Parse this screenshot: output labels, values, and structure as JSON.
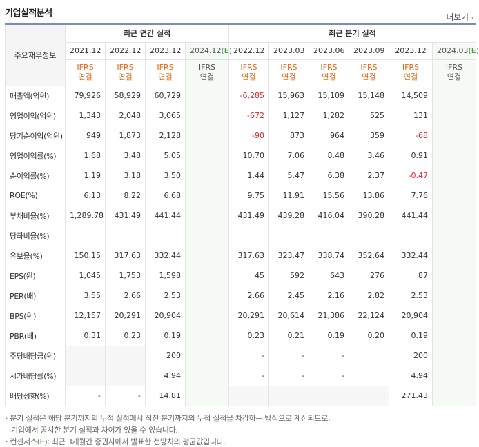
{
  "header": {
    "title": "기업실적분석",
    "more_label": "더보기",
    "more_arrow": "›"
  },
  "table": {
    "corner_label": "주요재무정보",
    "annual_group": "최근 연간 실적",
    "quarter_group": "최근 분기 실적",
    "annual_periods": [
      "2021.12",
      "2022.12",
      "2023.12",
      "2024.12"
    ],
    "quarter_periods": [
      "2022.12",
      "2023.03",
      "2023.06",
      "2023.09",
      "2023.12",
      "2024.03"
    ],
    "estimate_mark": "(E)",
    "ifrs_top": "IFRS",
    "ifrs_bottom": "연결",
    "rows": [
      {
        "label": "매출액(억원)",
        "annual": [
          "79,926",
          "58,929",
          "60,729",
          ""
        ],
        "quarter": [
          "-6,285",
          "15,963",
          "15,109",
          "15,148",
          "14,509",
          ""
        ]
      },
      {
        "label": "영업이익(억원)",
        "annual": [
          "1,343",
          "2,048",
          "3,065",
          ""
        ],
        "quarter": [
          "-672",
          "1,127",
          "1,282",
          "525",
          "131",
          ""
        ]
      },
      {
        "label": "당기순이익(억원)",
        "annual": [
          "949",
          "1,873",
          "2,128",
          ""
        ],
        "quarter": [
          "-90",
          "873",
          "964",
          "359",
          "-68",
          ""
        ]
      },
      {
        "label": "영업이익률(%)",
        "annual": [
          "1.68",
          "3.48",
          "5.05",
          ""
        ],
        "quarter": [
          "10.70",
          "7.06",
          "8.48",
          "3.46",
          "0.91",
          ""
        ]
      },
      {
        "label": "순이익률(%)",
        "annual": [
          "1.19",
          "3.18",
          "3.50",
          ""
        ],
        "quarter": [
          "1.44",
          "5.47",
          "6.38",
          "2.37",
          "-0.47",
          ""
        ]
      },
      {
        "label": "ROE(%)",
        "annual": [
          "6.13",
          "8.22",
          "6.68",
          ""
        ],
        "quarter": [
          "9.75",
          "11.91",
          "15.56",
          "13.86",
          "7.76",
          ""
        ]
      },
      {
        "label": "부채비율(%)",
        "annual": [
          "1,289.78",
          "431.49",
          "441.44",
          ""
        ],
        "quarter": [
          "431.49",
          "439.28",
          "416.04",
          "390.28",
          "441.44",
          ""
        ]
      },
      {
        "label": "당좌비율(%)",
        "annual": [
          "",
          "",
          "",
          ""
        ],
        "quarter": [
          "",
          "",
          "",
          "",
          "",
          ""
        ]
      },
      {
        "label": "유보율(%)",
        "annual": [
          "150.15",
          "317.63",
          "332.44",
          ""
        ],
        "quarter": [
          "317.63",
          "323.47",
          "338.74",
          "352.64",
          "332.44",
          ""
        ]
      },
      {
        "label": "EPS(원)",
        "annual": [
          "1,045",
          "1,753",
          "1,598",
          ""
        ],
        "quarter": [
          "45",
          "592",
          "643",
          "276",
          "87",
          ""
        ]
      },
      {
        "label": "PER(배)",
        "annual": [
          "3.55",
          "2.66",
          "2.53",
          ""
        ],
        "quarter": [
          "2.66",
          "2.45",
          "2.16",
          "2.82",
          "2.53",
          ""
        ]
      },
      {
        "label": "BPS(원)",
        "annual": [
          "12,157",
          "20,291",
          "20,904",
          ""
        ],
        "quarter": [
          "20,291",
          "20,614",
          "21,386",
          "22,124",
          "20,904",
          ""
        ]
      },
      {
        "label": "PBR(배)",
        "annual": [
          "0.31",
          "0.23",
          "0.19",
          ""
        ],
        "quarter": [
          "0.23",
          "0.21",
          "0.19",
          "0.20",
          "0.19",
          ""
        ]
      },
      {
        "label": "주당배당금(원)",
        "annual": [
          "",
          "",
          "200",
          ""
        ],
        "quarter": [
          "-",
          "-",
          "-",
          "",
          "200",
          ""
        ]
      },
      {
        "label": "시가배당률(%)",
        "annual": [
          "",
          "",
          "4.94",
          ""
        ],
        "quarter": [
          "-",
          "-",
          "-",
          "",
          "4.94",
          ""
        ]
      },
      {
        "label": "배당성향(%)",
        "annual": [
          "-",
          "-",
          "14.81",
          ""
        ],
        "quarter": [
          "",
          "",
          "",
          "",
          "271.43",
          ""
        ]
      }
    ]
  },
  "notes": {
    "line1": "· 분기 실적은 해당 분기까지의 누적 실적에서 직전 분기까지의 누적 실적을 차감하는 방식으로 계산되므로,",
    "line2": "기업에서 공시한 분기 실적과 차이가 있을 수 있습니다.",
    "line3_prefix": "· 컨센서스",
    "line3_mark": "(E)",
    "line3_suffix": ": 최근 3개월간 증권사에서 발표한 전망치의 평균값입니다."
  },
  "colors": {
    "negative": "#e0252b",
    "ifrs": "#e06b18",
    "estimate": "#3a8c3a",
    "top_border": "#7a8cb8"
  }
}
